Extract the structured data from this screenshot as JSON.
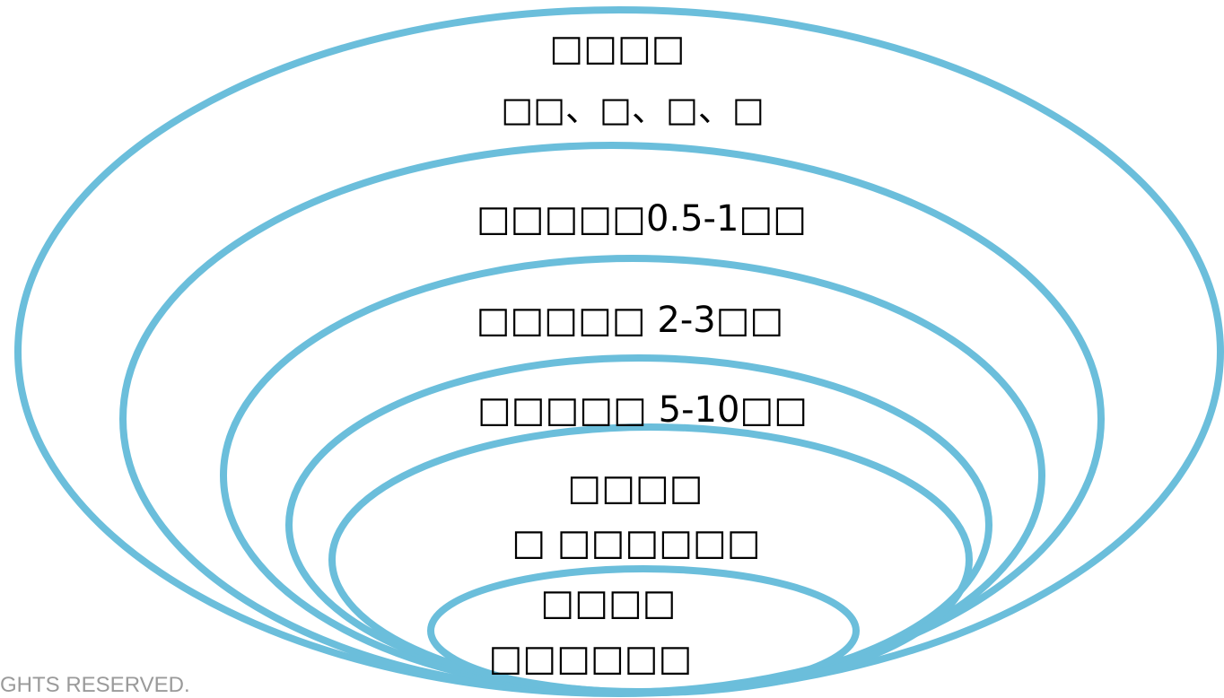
{
  "diagram": {
    "ring_color": "#6bbedb",
    "rings": [
      {
        "title": "□□□□",
        "subtitle": "□□、□、□、□"
      },
      {
        "title": "□□□□□0.5-1□□"
      },
      {
        "title": "□□□□□ 2-3□□"
      },
      {
        "title": "□□□□□ 5-10□□"
      },
      {
        "title": "□□□□",
        "subtitle": "□ □□□□□□"
      },
      {
        "title": "□□□□",
        "subtitle": "□□□□□□"
      }
    ]
  },
  "footer": {
    "copyright": "GHTS RESERVED."
  }
}
